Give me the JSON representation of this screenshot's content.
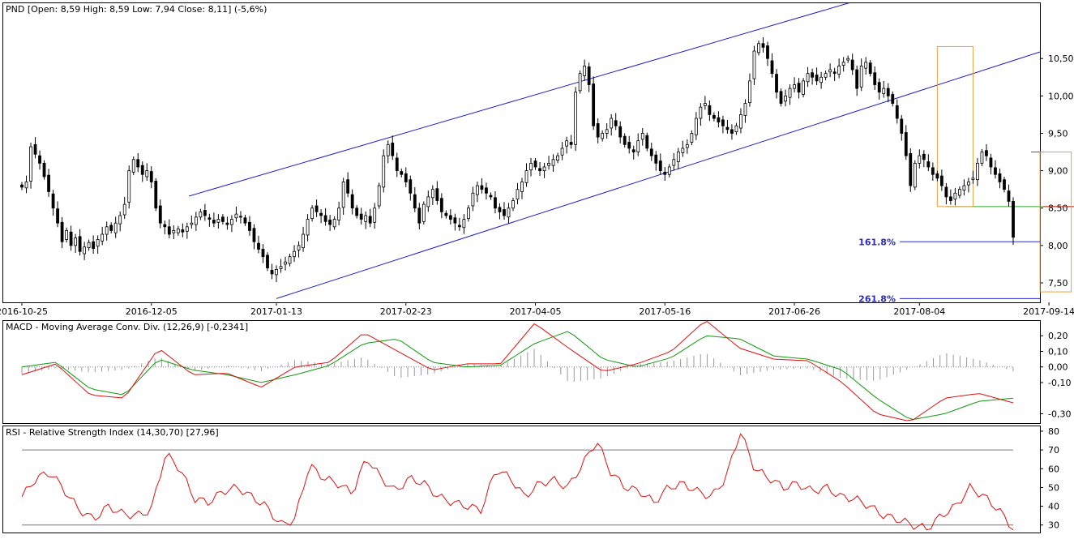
{
  "chart_data": [
    {
      "type": "candlestick",
      "title": "PND [Open: 8,59  High: 8,59  Low: 7,94  Close: 8,11] (-5,6%)",
      "ylim": [
        7.24,
        11.25
      ],
      "y_ticks": [
        "10,50",
        "10,00",
        "9,50",
        "9,00",
        "8,50",
        "8,00",
        "7,50"
      ],
      "y_tick_values": [
        10.5,
        10.0,
        9.5,
        9.0,
        8.5,
        8.0,
        7.5
      ],
      "x_ticks": [
        "2016-10-25",
        "2016-12-05",
        "2017-01-13",
        "2017-02-23",
        "2017-04-05",
        "2017-05-16",
        "2017-06-26",
        "2017-08-04",
        "2017-09-14"
      ],
      "x_tick_bars": [
        0,
        29,
        57,
        86,
        115,
        144,
        173,
        201,
        230
      ],
      "closes": [
        8.78,
        8.85,
        9.32,
        9.22,
        9.1,
        8.92,
        8.72,
        8.5,
        8.3,
        8.05,
        8.2,
        8.0,
        8.1,
        7.92,
        7.98,
        8.04,
        7.96,
        8.08,
        8.15,
        8.25,
        8.2,
        8.3,
        8.4,
        8.55,
        9.0,
        9.15,
        9.05,
        8.95,
        9.0,
        8.85,
        8.5,
        8.3,
        8.25,
        8.15,
        8.2,
        8.22,
        8.18,
        8.25,
        8.3,
        8.38,
        8.45,
        8.4,
        8.35,
        8.3,
        8.35,
        8.32,
        8.28,
        8.35,
        8.42,
        8.38,
        8.3,
        8.2,
        8.05,
        7.95,
        7.85,
        7.7,
        7.62,
        7.68,
        7.72,
        7.78,
        7.85,
        7.92,
        8.0,
        8.15,
        8.35,
        8.5,
        8.45,
        8.4,
        8.32,
        8.28,
        8.35,
        8.5,
        8.85,
        8.7,
        8.5,
        8.4,
        8.35,
        8.4,
        8.3,
        8.5,
        8.8,
        9.2,
        9.35,
        9.2,
        9.0,
        8.95,
        8.85,
        8.7,
        8.5,
        8.3,
        8.55,
        8.65,
        8.75,
        8.6,
        8.45,
        8.4,
        8.35,
        8.3,
        8.25,
        8.35,
        8.5,
        8.7,
        8.8,
        8.75,
        8.7,
        8.65,
        8.5,
        8.45,
        8.4,
        8.5,
        8.6,
        8.75,
        8.85,
        9.0,
        9.1,
        9.05,
        9.0,
        9.05,
        9.1,
        9.15,
        9.2,
        9.3,
        9.4,
        9.35,
        10.05,
        10.3,
        10.4,
        10.15,
        9.6,
        9.45,
        9.5,
        9.55,
        9.7,
        9.6,
        9.45,
        9.35,
        9.3,
        9.25,
        9.4,
        9.5,
        9.3,
        9.2,
        9.1,
        9.0,
        8.95,
        9.05,
        9.15,
        9.25,
        9.3,
        9.35,
        9.5,
        9.7,
        9.85,
        9.9,
        9.75,
        9.7,
        9.65,
        9.6,
        9.55,
        9.5,
        9.6,
        9.75,
        9.9,
        10.2,
        10.6,
        10.7,
        10.65,
        10.5,
        10.3,
        10.05,
        9.9,
        10.0,
        10.1,
        10.15,
        10.05,
        10.2,
        10.3,
        10.25,
        10.2,
        10.25,
        10.3,
        10.35,
        10.3,
        10.4,
        10.45,
        10.5,
        10.35,
        10.1,
        10.4,
        10.45,
        10.3,
        10.15,
        10.05,
        10.1,
        10.0,
        9.9,
        9.7,
        9.5,
        9.2,
        8.8,
        9.1,
        9.2,
        9.15,
        9.05,
        8.95,
        8.9,
        8.8,
        8.65,
        8.6,
        8.7,
        8.75,
        8.8,
        8.85,
        8.9,
        9.1,
        9.25,
        9.2,
        9.05,
        8.95,
        8.85,
        8.75,
        8.59,
        8.11
      ],
      "annotations": [
        "161.8%",
        "261.8%"
      ],
      "fib_levels": [
        8.05,
        7.29
      ],
      "h_levels": [
        9.25,
        8.52
      ],
      "trendlines": [
        {
          "color": "#1e1ec8",
          "from": [
            57,
            7.29
          ],
          "to": [
            240,
            10.82
          ]
        },
        {
          "color": "#1e1ec8",
          "from": [
            57,
            8.66
          ],
          "to": [
            240,
            12.2
          ]
        }
      ],
      "boxes": [
        {
          "color": "#e8a040",
          "bars": [
            205,
            213
          ],
          "range": [
            8.52,
            10.66
          ]
        },
        {
          "color": "#e8a040",
          "bars": [
            228,
            235
          ],
          "range": [
            7.38,
            9.25
          ]
        }
      ]
    },
    {
      "type": "line",
      "title": "MACD - Moving Average Conv. Div. (12,26,9) [-0,2341]",
      "ylim": [
        -0.36,
        0.3
      ],
      "y_ticks": [
        "0,20",
        "0,10",
        "0,00",
        "-0,10",
        "-0,30"
      ],
      "y_tick_values": [
        0.2,
        0.1,
        0.0,
        -0.1,
        -0.3
      ],
      "series": [
        {
          "color": "#dd1111",
          "values": [
            -0.05,
            0.02,
            -0.18,
            -0.2,
            0.12,
            -0.05,
            -0.04,
            -0.13,
            0.0,
            0.03,
            0.22,
            0.1,
            -0.02,
            0.02,
            0.02,
            0.28,
            0.12,
            -0.03,
            0.02,
            0.1,
            0.3,
            0.12,
            0.05,
            0.04,
            -0.1,
            -0.3,
            -0.35,
            -0.2,
            -0.17,
            -0.23
          ]
        },
        {
          "color": "#119911",
          "values": [
            0.0,
            0.03,
            -0.14,
            -0.18,
            0.05,
            -0.02,
            -0.05,
            -0.1,
            -0.05,
            0.01,
            0.15,
            0.18,
            0.03,
            0.0,
            0.01,
            0.15,
            0.23,
            0.05,
            0.0,
            0.06,
            0.2,
            0.18,
            0.07,
            0.05,
            -0.02,
            -0.2,
            -0.34,
            -0.3,
            -0.22,
            -0.2
          ]
        }
      ]
    },
    {
      "type": "line",
      "title": "RSI - Relative Strength Index (14,30,70) [27,96]",
      "ylim": [
        26,
        83
      ],
      "y_ticks": [
        "80",
        "70",
        "60",
        "50",
        "40",
        "30"
      ],
      "y_tick_values": [
        80,
        70,
        60,
        50,
        40,
        30
      ],
      "levels": [
        70,
        30
      ],
      "series": [
        {
          "color": "#dd1111",
          "values": [
            45,
            55,
            58,
            48,
            38,
            33,
            40,
            36,
            35,
            38,
            68,
            60,
            44,
            42,
            48,
            50,
            45,
            40,
            30,
            33,
            62,
            55,
            52,
            47,
            66,
            55,
            48,
            55,
            52,
            45,
            42,
            40,
            38,
            60,
            55,
            45,
            52,
            54,
            50,
            62,
            75,
            58,
            50,
            48,
            42,
            50,
            52,
            48,
            45,
            55,
            80,
            60,
            55,
            50,
            52,
            48,
            50,
            45,
            44,
            40,
            35,
            33,
            30,
            28,
            35,
            40,
            50,
            45,
            38,
            28
          ]
        }
      ]
    }
  ]
}
